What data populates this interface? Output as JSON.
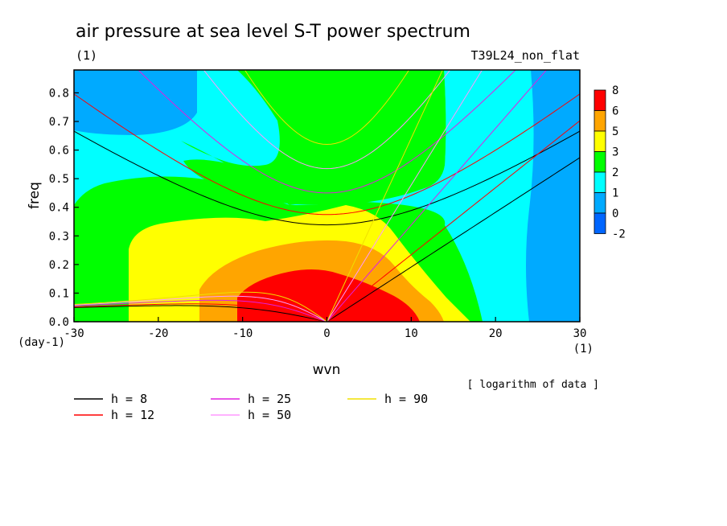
{
  "chart_data": {
    "type": "heatmap",
    "title": "air pressure at sea level S-T power spectrum",
    "units": "(1)",
    "experiment": "T39L24_non_flat",
    "xlabel": "wvn",
    "xunits": "(1)",
    "ylabel": "freq",
    "yunits": "(day-1)",
    "xlim": [
      -30,
      30
    ],
    "ylim": [
      0,
      0.88
    ],
    "xticks": [
      "-30",
      "-20",
      "-10",
      "0",
      "10",
      "20",
      "30"
    ],
    "yticks": [
      "0.0",
      "0.1",
      "0.2",
      "0.3",
      "0.4",
      "0.5",
      "0.6",
      "0.7",
      "0.8"
    ],
    "note": "[ logarithm of data ]",
    "colorbar": {
      "labels": [
        "8",
        "6",
        "5",
        "3",
        "2",
        "1",
        "0",
        "-2"
      ],
      "colors": [
        "#ff0000",
        "#ffa500",
        "#ffff00",
        "#00ff00",
        "#00ffff",
        "#00aaff",
        "#0066ff"
      ]
    },
    "dispersion_curves": [
      {
        "name": "h =  8",
        "h": 8,
        "color": "#000000"
      },
      {
        "name": "h = 12",
        "h": 12,
        "color": "#ff0000"
      },
      {
        "name": "h = 25",
        "h": 25,
        "color": "#e020e0"
      },
      {
        "name": "h = 50",
        "h": 50,
        "color": "#ff99ff"
      },
      {
        "name": "h = 90",
        "h": 90,
        "color": "#f0e000"
      }
    ]
  }
}
